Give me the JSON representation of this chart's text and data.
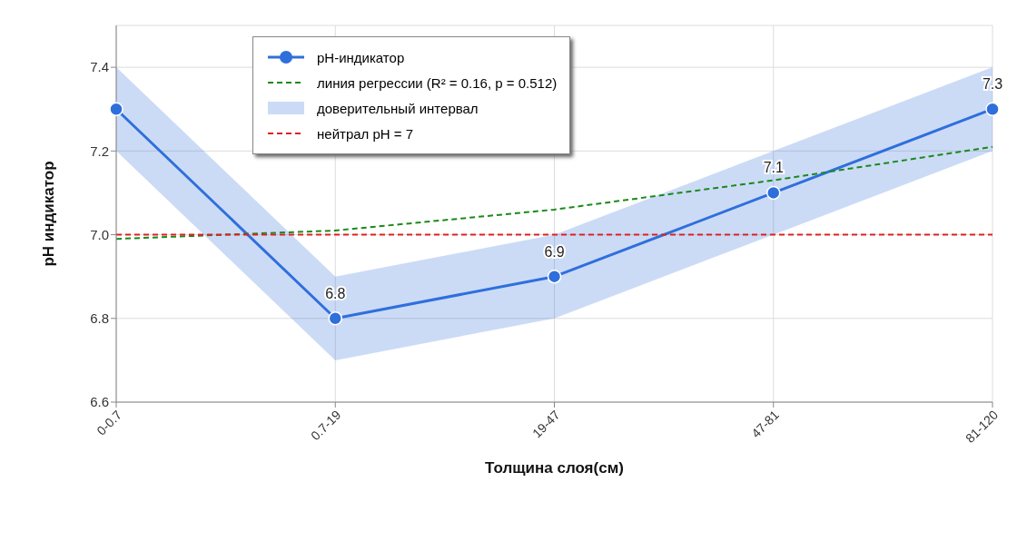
{
  "chart_data": {
    "type": "line",
    "xlabel": "Толщина слоя(см)",
    "ylabel": "pH индикатор",
    "categories": [
      "0-0.7",
      "0.7-19",
      "19-47",
      "47-81",
      "81-120"
    ],
    "series": [
      {
        "name": "pH-индикатор",
        "color": "#2f6fdc",
        "values": [
          7.3,
          6.8,
          6.9,
          7.1,
          7.3
        ],
        "value_labels": [
          null,
          "6.8",
          "6.9",
          "7.1",
          "7.3"
        ],
        "marker": "circle",
        "line_style": "solid",
        "lower": [
          7.2,
          6.7,
          6.8,
          7.0,
          7.2
        ],
        "upper": [
          7.4,
          6.9,
          7.0,
          7.2,
          7.4
        ]
      },
      {
        "type": "line",
        "name": "линия регрессии (R² = 0.16, p = 0.512)",
        "color": "#1a8a1a",
        "values": [
          6.99,
          7.01,
          7.06,
          7.13,
          7.21
        ],
        "line_style": "dashed",
        "marker": "none"
      }
    ],
    "annotations": [
      "доверительный интервал"
    ],
    "ylim": [
      6.6,
      7.5
    ],
    "yticks": [
      {
        "value": 6.6,
        "label": "6.6"
      },
      {
        "value": 6.8,
        "label": "6.8"
      },
      {
        "value": 7,
        "label": "7.0"
      },
      {
        "value": 7.2,
        "label": "7.2"
      },
      {
        "value": 7.4,
        "label": "7.4"
      }
    ],
    "ref_lines": [
      {
        "axis": "y",
        "value": 7,
        "label": "нейтрал pH = 7",
        "color": "#e02020",
        "line_style": "dashed"
      }
    ],
    "grid": true,
    "legend": "top left"
  }
}
